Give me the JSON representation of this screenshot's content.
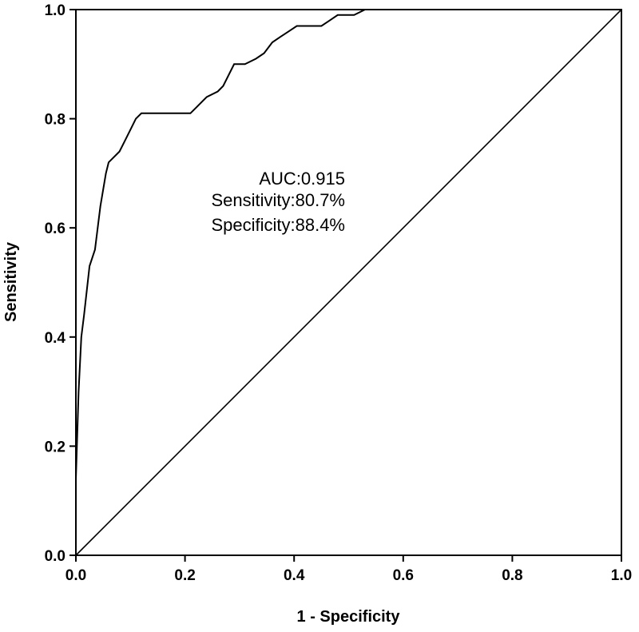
{
  "chart_data": {
    "type": "line",
    "title": "",
    "xlabel": "1 - Specificity",
    "ylabel": "Sensitivity",
    "xlim": [
      0,
      1
    ],
    "ylim": [
      0,
      1
    ],
    "x_ticks": [
      "0.0",
      "0.2",
      "0.4",
      "0.6",
      "0.8",
      "1.0"
    ],
    "y_ticks": [
      "0.0",
      "0.2",
      "0.4",
      "0.6",
      "0.8",
      "1.0"
    ],
    "grid": false,
    "annotations": [
      "AUC:0.915",
      "Sensitivity:80.7%",
      "Specificity:88.4%"
    ],
    "series": [
      {
        "x": [
          0.0,
          0.0,
          0.005,
          0.01,
          0.015,
          0.025,
          0.035,
          0.045,
          0.055,
          0.06,
          0.08,
          0.09,
          0.1,
          0.11,
          0.12,
          0.13,
          0.21,
          0.22,
          0.24,
          0.26,
          0.27,
          0.29,
          0.31,
          0.33,
          0.345,
          0.36,
          0.375,
          0.39,
          0.405,
          0.45,
          0.465,
          0.48,
          0.51,
          0.53,
          1.0
        ],
        "y": [
          0.0,
          0.14,
          0.3,
          0.4,
          0.44,
          0.53,
          0.56,
          0.64,
          0.7,
          0.72,
          0.74,
          0.76,
          0.78,
          0.8,
          0.81,
          0.81,
          0.81,
          0.82,
          0.84,
          0.85,
          0.86,
          0.9,
          0.9,
          0.91,
          0.92,
          0.94,
          0.95,
          0.96,
          0.97,
          0.97,
          0.98,
          0.99,
          0.99,
          1.0,
          1.0
        ]
      },
      {
        "x": [
          0,
          1
        ],
        "y": [
          0,
          1
        ]
      }
    ]
  }
}
